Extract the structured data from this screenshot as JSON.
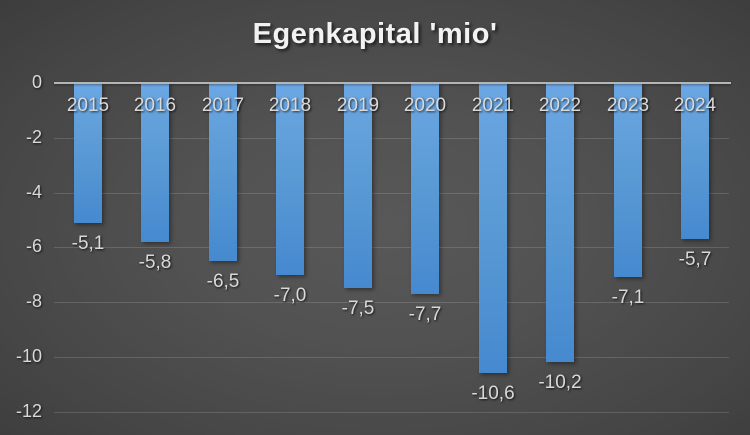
{
  "chart_data": {
    "type": "bar",
    "title": "Egenkapital 'mio'",
    "categories": [
      "2015",
      "2016",
      "2017",
      "2018",
      "2019",
      "2020",
      "2021",
      "2022",
      "2023",
      "2024"
    ],
    "values": [
      -5.1,
      -5.8,
      -6.5,
      -7.0,
      -7.5,
      -7.7,
      -10.6,
      -10.2,
      -7.1,
      -5.7
    ],
    "value_labels": [
      "-5,1",
      "-5,8",
      "-6,5",
      "-7,0",
      "-7,5",
      "-7,7",
      "-10,6",
      "-10,2",
      "-7,1",
      "-5,7"
    ],
    "y_tick_labels": [
      "0",
      "-2",
      "-4",
      "-6",
      "-8",
      "-10",
      "-12"
    ],
    "y_tick_values": [
      0,
      -2,
      -4,
      -6,
      -8,
      -10,
      -12
    ],
    "ylim": [
      -12,
      0
    ],
    "decimal_separator": ",",
    "grid": true,
    "legend": false,
    "category_label_position": "below-zero-axis",
    "value_label_position": "outside-end",
    "colors": {
      "bar_top": "#6ca7e3",
      "bar_main": "#5b9bd5",
      "bar_bottom": "#4689cf",
      "label_text": "#d9d9d9",
      "title_text": "#f2f2f2",
      "axis_line": "#b5b5b5",
      "gridline": "rgba(255,255,255,0.14)",
      "background_center": "#585858",
      "background_edge": "#272727"
    }
  }
}
